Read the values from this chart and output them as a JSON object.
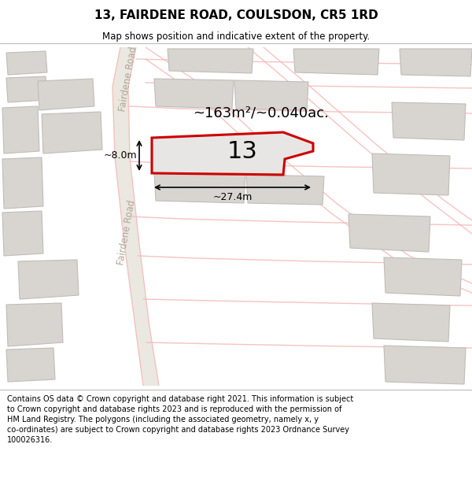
{
  "title_line1": "13, FAIRDENE ROAD, COULSDON, CR5 1RD",
  "title_line2": "Map shows position and indicative extent of the property.",
  "area_text": "~163m²/~0.040ac.",
  "width_label": "~27.4m",
  "height_label": "~8.0m",
  "property_number": "13",
  "road_name": "Fairdene Road",
  "copyright_text": "Contains OS data © Crown copyright and database right 2021. This information is subject\nto Crown copyright and database rights 2023 and is reproduced with the permission of\nHM Land Registry. The polygons (including the associated geometry, namely x, y\nco-ordinates) are subject to Crown copyright and database rights 2023 Ordnance Survey\n100026316.",
  "map_bg": "#f0eeea",
  "road_color": "#f5b8b8",
  "road_bg": "#eae8e0",
  "highlight_fill": "#e8e6e4",
  "highlight_edge": "#cc0000",
  "building_fill": "#d8d5d0",
  "building_edge": "#c0bcb8",
  "title_bg": "#ffffff",
  "footer_bg": "#ffffff"
}
